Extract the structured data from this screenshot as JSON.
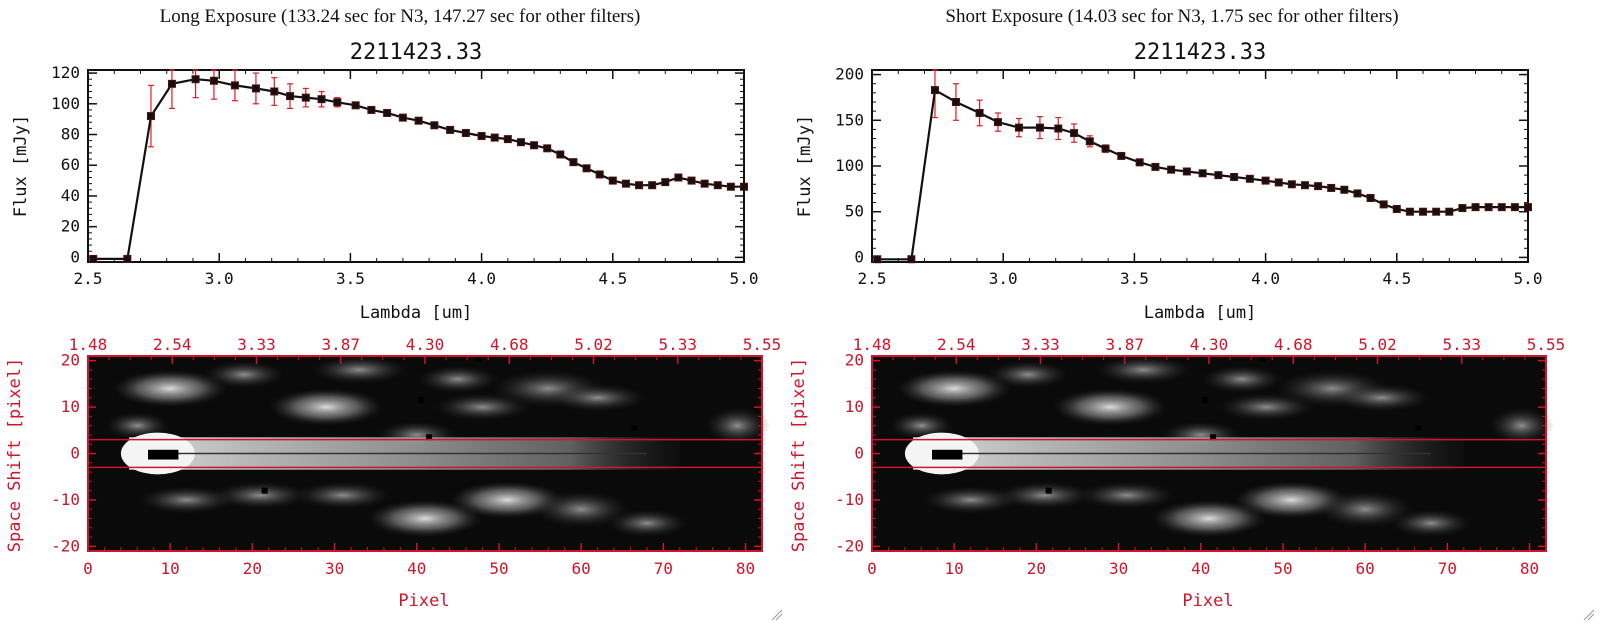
{
  "colors": {
    "axis": "#111111",
    "accent": "#d0142a",
    "errorbar": "#e01b24",
    "marker": "#5a0c0c"
  },
  "chart_data": [
    {
      "type": "line",
      "header": "Long Exposure (133.24 sec for N3, 147.27 sec for other filters)",
      "title": "2211423.33",
      "xlabel": "Lambda [um]",
      "ylabel": "Flux [mJy]",
      "xlim": [
        2.5,
        5.0
      ],
      "ylim": [
        -3,
        122
      ],
      "xticks": [
        "2.5",
        "3.0",
        "3.5",
        "4.0",
        "4.5",
        "5.0"
      ],
      "yticks": [
        "0",
        "20",
        "40",
        "60",
        "80",
        "100",
        "120"
      ],
      "series": [
        {
          "x": [
            2.52,
            2.65,
            2.74,
            2.82,
            2.91,
            2.98,
            3.06,
            3.14,
            3.21,
            3.27,
            3.33,
            3.39,
            3.45,
            3.52,
            3.58,
            3.64,
            3.7,
            3.76,
            3.82,
            3.88,
            3.94,
            4.0,
            4.05,
            4.1,
            4.15,
            4.2,
            4.25,
            4.3,
            4.35,
            4.4,
            4.45,
            4.5,
            4.55,
            4.6,
            4.65,
            4.7,
            4.75,
            4.8,
            4.85,
            4.9,
            4.95,
            5.0
          ],
          "y": [
            -1,
            -1,
            92,
            113,
            116,
            115,
            112,
            110,
            108,
            105,
            104,
            103,
            101,
            99,
            96,
            94,
            91,
            89,
            86,
            83,
            81,
            79,
            78,
            77,
            75,
            73,
            71,
            67,
            62,
            58,
            54,
            50,
            48,
            47,
            47,
            49,
            52,
            50,
            48,
            47,
            46,
            46
          ],
          "err": [
            0,
            0,
            20,
            16,
            12,
            12,
            10,
            10,
            9,
            8,
            6,
            5,
            3,
            2,
            2,
            2,
            2,
            2,
            2,
            2,
            2,
            2,
            2,
            2,
            2,
            2,
            2,
            2,
            2,
            2,
            2,
            2,
            2,
            2,
            2,
            2,
            2,
            2,
            2,
            2,
            2,
            2
          ]
        }
      ]
    },
    {
      "type": "line",
      "header": "Short Exposure (14.03 sec for N3, 1.75 sec for other filters)",
      "title": "2211423.33",
      "xlabel": "Lambda [um]",
      "ylabel": "Flux [mJy]",
      "xlim": [
        2.5,
        5.0
      ],
      "ylim": [
        -5,
        205
      ],
      "xticks": [
        "2.5",
        "3.0",
        "3.5",
        "4.0",
        "4.5",
        "5.0"
      ],
      "yticks": [
        "0",
        "50",
        "100",
        "150",
        "200"
      ],
      "series": [
        {
          "x": [
            2.52,
            2.65,
            2.74,
            2.82,
            2.91,
            2.98,
            3.06,
            3.14,
            3.21,
            3.27,
            3.33,
            3.39,
            3.45,
            3.52,
            3.58,
            3.64,
            3.7,
            3.76,
            3.82,
            3.88,
            3.94,
            4.0,
            4.05,
            4.1,
            4.15,
            4.2,
            4.25,
            4.3,
            4.35,
            4.4,
            4.45,
            4.5,
            4.55,
            4.6,
            4.65,
            4.7,
            4.75,
            4.8,
            4.85,
            4.9,
            4.95,
            5.0
          ],
          "y": [
            -2,
            -2,
            183,
            170,
            158,
            148,
            142,
            142,
            141,
            136,
            127,
            119,
            111,
            104,
            99,
            96,
            94,
            92,
            90,
            88,
            86,
            84,
            82,
            80,
            79,
            78,
            76,
            74,
            70,
            65,
            58,
            53,
            50,
            50,
            50,
            50,
            54,
            55,
            55,
            55,
            55,
            55
          ],
          "err": [
            0,
            0,
            30,
            20,
            14,
            10,
            10,
            12,
            12,
            10,
            6,
            4,
            3,
            3,
            3,
            3,
            3,
            3,
            3,
            3,
            3,
            3,
            3,
            3,
            3,
            3,
            3,
            3,
            3,
            3,
            3,
            3,
            3,
            3,
            3,
            3,
            3,
            3,
            3,
            3,
            3,
            3
          ]
        }
      ]
    },
    {
      "type": "heatmap",
      "xlabel": "Pixel",
      "ylabel": "Space Shift [pixel]",
      "xlim": [
        0,
        82
      ],
      "ylim": [
        -21,
        21
      ],
      "xticks": [
        "0",
        "10",
        "20",
        "30",
        "40",
        "50",
        "60",
        "70",
        "80"
      ],
      "yticks": [
        "-20",
        "-10",
        "0",
        "10",
        "20"
      ],
      "top_ticks": [
        "1.48",
        "2.54",
        "3.33",
        "3.87",
        "4.30",
        "4.68",
        "5.02",
        "5.33",
        "5.55"
      ],
      "band": [
        -3,
        3
      ]
    },
    {
      "type": "heatmap",
      "xlabel": "Pixel",
      "ylabel": "Space Shift [pixel]",
      "xlim": [
        0,
        82
      ],
      "ylim": [
        -21,
        21
      ],
      "xticks": [
        "0",
        "10",
        "20",
        "30",
        "40",
        "50",
        "60",
        "70",
        "80"
      ],
      "yticks": [
        "-20",
        "-10",
        "0",
        "10",
        "20"
      ],
      "top_ticks": [
        "1.48",
        "2.54",
        "3.33",
        "3.87",
        "4.30",
        "4.68",
        "5.02",
        "5.33",
        "5.55"
      ],
      "band": [
        -3,
        3
      ]
    }
  ]
}
